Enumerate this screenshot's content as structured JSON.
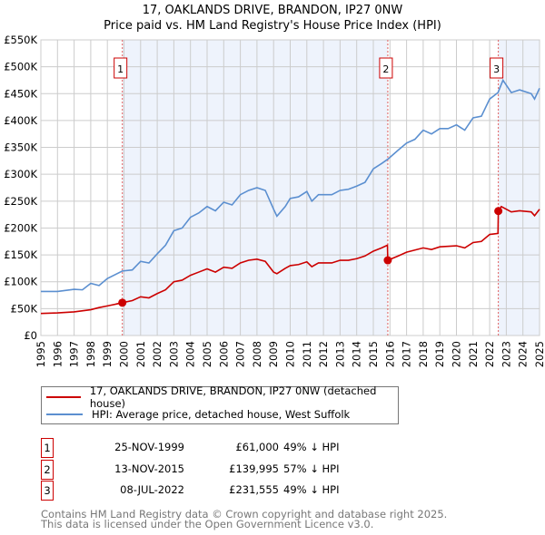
{
  "title": "17, OAKLANDS DRIVE, BRANDON, IP27 0NW",
  "subtitle": "Price paid vs. HM Land Registry's House Price Index (HPI)",
  "colors": {
    "property": "#cc0000",
    "hpi": "#5b8fd0",
    "shade": "#eef3fc",
    "marker_border": "#cc0000"
  },
  "chart_data": {
    "type": "line",
    "title": "17, OAKLANDS DRIVE, BRANDON, IP27 0NW",
    "xlim": [
      1995,
      2025
    ],
    "ylim": [
      0,
      550000
    ],
    "yticks": [
      {
        "v": 0,
        "label": "£0"
      },
      {
        "v": 50000,
        "label": "£50K"
      },
      {
        "v": 100000,
        "label": "£100K"
      },
      {
        "v": 150000,
        "label": "£150K"
      },
      {
        "v": 200000,
        "label": "£200K"
      },
      {
        "v": 250000,
        "label": "£250K"
      },
      {
        "v": 300000,
        "label": "£300K"
      },
      {
        "v": 350000,
        "label": "£350K"
      },
      {
        "v": 400000,
        "label": "£400K"
      },
      {
        "v": 450000,
        "label": "£450K"
      },
      {
        "v": 500000,
        "label": "£500K"
      },
      {
        "v": 550000,
        "label": "£550K"
      }
    ],
    "xticks": [
      "1995",
      "1996",
      "1997",
      "1998",
      "1999",
      "2000",
      "2001",
      "2002",
      "2003",
      "2004",
      "2005",
      "2006",
      "2007",
      "2008",
      "2009",
      "2010",
      "2011",
      "2012",
      "2013",
      "2014",
      "2015",
      "2016",
      "2017",
      "2018",
      "2019",
      "2020",
      "2021",
      "2022",
      "2023",
      "2024",
      "2025"
    ],
    "grid": true,
    "shaded": [
      [
        1999.9,
        2015.87
      ],
      [
        2022.52,
        2025
      ]
    ],
    "series": [
      {
        "name": "17, OAKLANDS DRIVE, BRANDON, IP27 0NW (detached house)",
        "x": [
          1995,
          1996,
          1997,
          1998,
          1998.5,
          1999,
          1999.9,
          2000.5,
          2001,
          2001.5,
          2002,
          2002.5,
          2003,
          2003.5,
          2004,
          2004.5,
          2005,
          2005.5,
          2006,
          2006.5,
          2007,
          2007.5,
          2008,
          2008.5,
          2009,
          2009.2,
          2009.7,
          2010,
          2010.5,
          2011,
          2011.3,
          2011.7,
          2012.5,
          2013,
          2013.5,
          2014,
          2014.5,
          2015,
          2015.5,
          2015.85,
          2015.87,
          2016.5,
          2017,
          2018,
          2018.5,
          2019,
          2020,
          2020.5,
          2021,
          2021.5,
          2022,
          2022.5,
          2022.52,
          2022.7,
          2023.3,
          2023.8,
          2024.5,
          2024.7,
          2025
        ],
        "y": [
          41000,
          42000,
          44000,
          48000,
          52000,
          55000,
          61000,
          65000,
          72000,
          70000,
          78000,
          85000,
          100000,
          103000,
          112000,
          118000,
          124000,
          118000,
          127000,
          125000,
          135000,
          140000,
          142000,
          138000,
          118000,
          115000,
          125000,
          130000,
          132000,
          137000,
          128000,
          135000,
          135000,
          140000,
          140000,
          143000,
          148000,
          157000,
          163000,
          168000,
          140000,
          148000,
          155000,
          163000,
          160000,
          165000,
          167000,
          163000,
          173000,
          175000,
          188000,
          190000,
          231555,
          240000,
          230000,
          232000,
          230000,
          223000,
          235000
        ]
      },
      {
        "name": "HPI: Average price, detached house, West Suffolk",
        "x": [
          1995,
          1996,
          1997,
          1997.5,
          1998,
          1998.5,
          1999,
          1999.9,
          2000.5,
          2001,
          2001.5,
          2002,
          2002.5,
          2003,
          2003.5,
          2004,
          2004.5,
          2005,
          2005.5,
          2006,
          2006.5,
          2007,
          2007.5,
          2008,
          2008.5,
          2009,
          2009.2,
          2009.7,
          2010,
          2010.5,
          2011,
          2011.3,
          2011.7,
          2012,
          2012.5,
          2013,
          2013.5,
          2014,
          2014.5,
          2015,
          2015.5,
          2015.87,
          2016.5,
          2017,
          2017.5,
          2018,
          2018.5,
          2019,
          2019.5,
          2020,
          2020.5,
          2021,
          2021.5,
          2022,
          2022.5,
          2022.8,
          2023.3,
          2023.8,
          2024.5,
          2024.7,
          2025
        ],
        "y": [
          82000,
          82000,
          86000,
          85000,
          97000,
          93000,
          106000,
          120000,
          122000,
          138000,
          135000,
          152000,
          168000,
          195000,
          200000,
          220000,
          228000,
          240000,
          232000,
          248000,
          243000,
          262000,
          270000,
          275000,
          270000,
          235000,
          222000,
          240000,
          255000,
          258000,
          268000,
          250000,
          262000,
          262000,
          262000,
          270000,
          272000,
          278000,
          285000,
          310000,
          320000,
          328000,
          345000,
          358000,
          365000,
          382000,
          375000,
          385000,
          385000,
          392000,
          382000,
          405000,
          408000,
          440000,
          452000,
          475000,
          452000,
          457000,
          450000,
          440000,
          460000
        ]
      }
    ],
    "sales": [
      {
        "label": "1",
        "x": 1999.9,
        "y": 61000
      },
      {
        "label": "2",
        "x": 2015.87,
        "y": 139995
      },
      {
        "label": "3",
        "x": 2022.52,
        "y": 231555
      }
    ],
    "legend_position": "below"
  },
  "legend": {
    "property": "17, OAKLANDS DRIVE, BRANDON, IP27 0NW (detached house)",
    "hpi": "HPI: Average price, detached house, West Suffolk"
  },
  "transactions": [
    {
      "num": "1",
      "date": "25-NOV-1999",
      "price": "£61,000",
      "pct": "49% ↓ HPI"
    },
    {
      "num": "2",
      "date": "13-NOV-2015",
      "price": "£139,995",
      "pct": "57% ↓ HPI"
    },
    {
      "num": "3",
      "date": "08-JUL-2022",
      "price": "£231,555",
      "pct": "49% ↓ HPI"
    }
  ],
  "footer": [
    "Contains HM Land Registry data © Crown copyright and database right 2025.",
    "This data is licensed under the Open Government Licence v3.0."
  ]
}
